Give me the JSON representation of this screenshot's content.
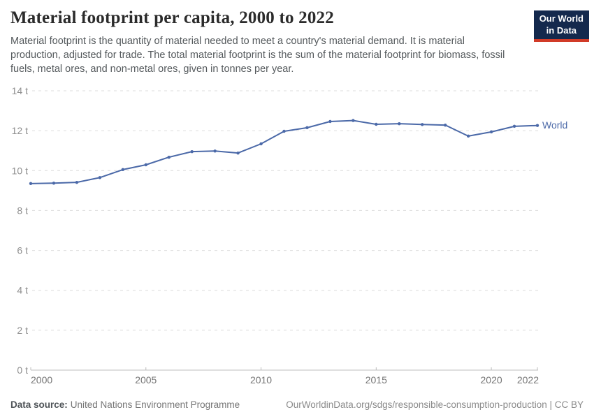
{
  "header": {
    "title": "Material footprint per capita, 2000 to 2022",
    "subtitle": "Material footprint is the quantity of material needed to meet a country's material demand. It is material production, adjusted for trade. The total material footprint is the sum of the material footprint for biomass, fossil fuels, metal ores, and non-metal ores, given in tonnes per year.",
    "logo": {
      "line1": "Our World",
      "line2": "in Data",
      "bg_color": "#14294d",
      "accent_color": "#d13b28"
    }
  },
  "chart_data": {
    "type": "line",
    "title": "Material footprint per capita, 2000 to 2022",
    "x": [
      2000,
      2001,
      2002,
      2003,
      2004,
      2005,
      2006,
      2007,
      2008,
      2009,
      2010,
      2011,
      2012,
      2013,
      2014,
      2015,
      2016,
      2017,
      2018,
      2019,
      2020,
      2021,
      2022
    ],
    "series": [
      {
        "name": "World",
        "color": "#4b69a8",
        "values": [
          9.35,
          9.37,
          9.41,
          9.65,
          10.05,
          10.29,
          10.67,
          10.95,
          10.98,
          10.88,
          11.34,
          11.97,
          12.15,
          12.46,
          12.51,
          12.32,
          12.35,
          12.31,
          12.28,
          11.73,
          11.94,
          12.22,
          12.26
        ]
      }
    ],
    "xlim": [
      2000,
      2022
    ],
    "ylim": [
      0,
      14
    ],
    "x_ticks": [
      2000,
      2005,
      2010,
      2015,
      2020,
      2022
    ],
    "y_ticks": [
      0,
      2,
      4,
      6,
      8,
      10,
      12,
      14
    ],
    "y_tick_suffix": " t",
    "grid": "horizontal-dashed",
    "legend": "line-end-label",
    "xlabel": "",
    "ylabel": ""
  },
  "footer": {
    "source_label": "Data source:",
    "source": "United Nations Environment Programme",
    "url_text": "OurWorldinData.org/sdgs/responsible-consumption-production | CC BY"
  }
}
